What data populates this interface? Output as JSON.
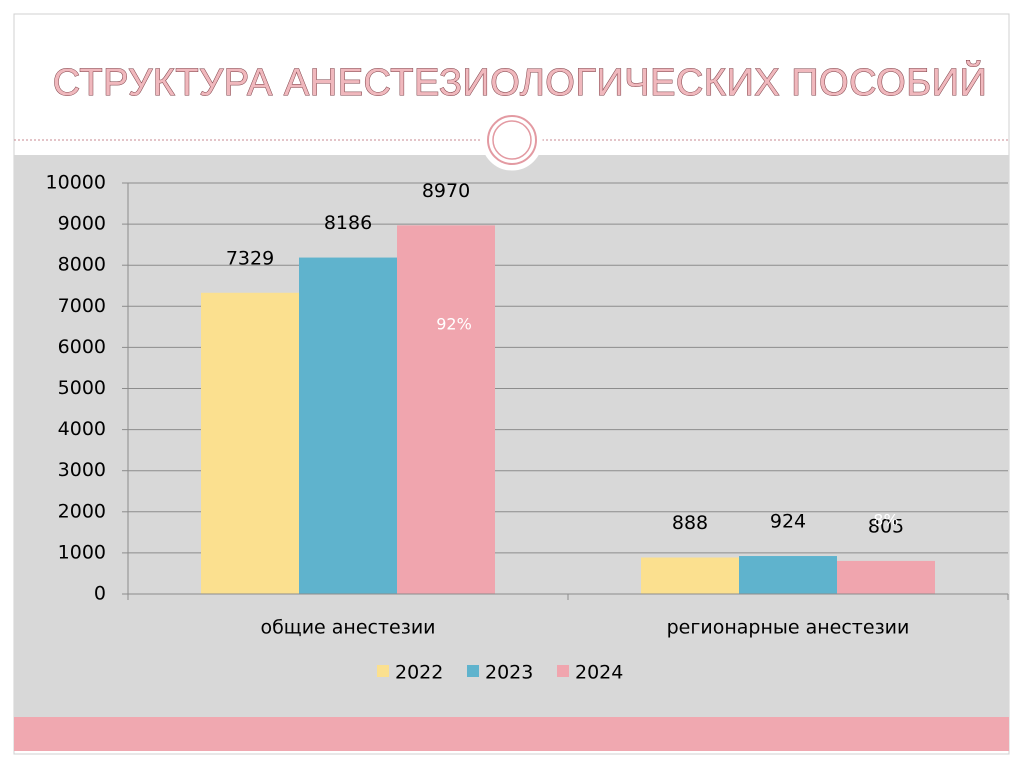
{
  "chart_data": {
    "type": "bar",
    "title": "СТРУКТУРА АНЕСТЕЗИОЛОГИЧЕСКИХ ПОСОБИЙ",
    "categories": [
      "общие анестезии",
      "регионарные анестезии"
    ],
    "series": [
      {
        "name": "2022",
        "color": "#fbe08f",
        "values": [
          7329,
          888
        ]
      },
      {
        "name": "2023",
        "color": "#5fb3cd",
        "values": [
          8186,
          924
        ]
      },
      {
        "name": "2024",
        "color": "#f0a5ae",
        "values": [
          8970,
          805
        ]
      }
    ],
    "annotations": [
      "92%",
      "8%"
    ],
    "ylim": [
      0,
      10000
    ],
    "yticks": [
      0,
      1000,
      2000,
      3000,
      4000,
      5000,
      6000,
      7000,
      8000,
      9000,
      10000
    ],
    "grid": true,
    "legend": "bottom"
  }
}
